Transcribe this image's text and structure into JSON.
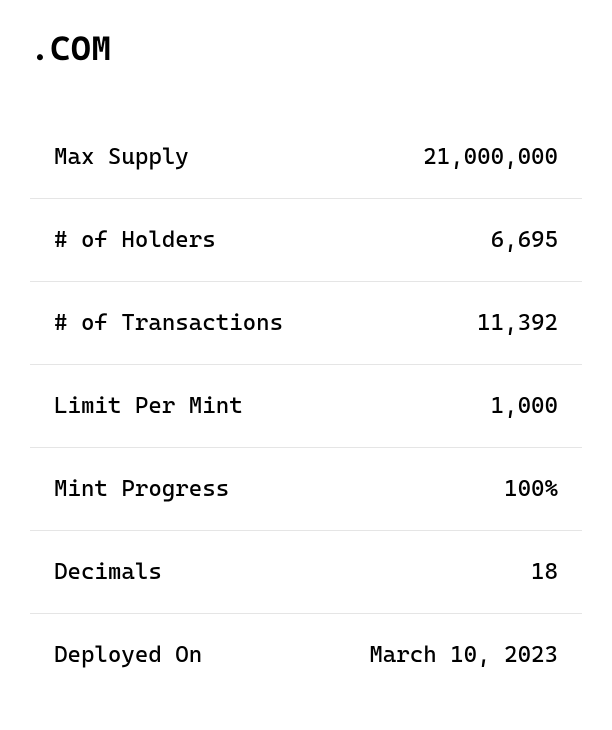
{
  "title": ".COM",
  "stats": {
    "row0": {
      "label": "Max Supply",
      "value": "21,000,000"
    },
    "row1": {
      "label": "# of Holders",
      "value": "6,695"
    },
    "row2": {
      "label": "# of Transactions",
      "value": "11,392"
    },
    "row3": {
      "label": "Limit Per Mint",
      "value": "1,000"
    },
    "row4": {
      "label": "Mint Progress",
      "value": "100%"
    },
    "row5": {
      "label": "Decimals",
      "value": "18"
    },
    "row6": {
      "label": "Deployed On",
      "value": "March 10, 2023"
    }
  },
  "styling": {
    "background_color": "#ffffff",
    "text_color": "#000000",
    "border_color": "#e5e5e5",
    "title_fontsize": 34,
    "body_fontsize": 23,
    "font_family": "monospace",
    "row_padding_y": 28,
    "row_padding_x": 24
  }
}
